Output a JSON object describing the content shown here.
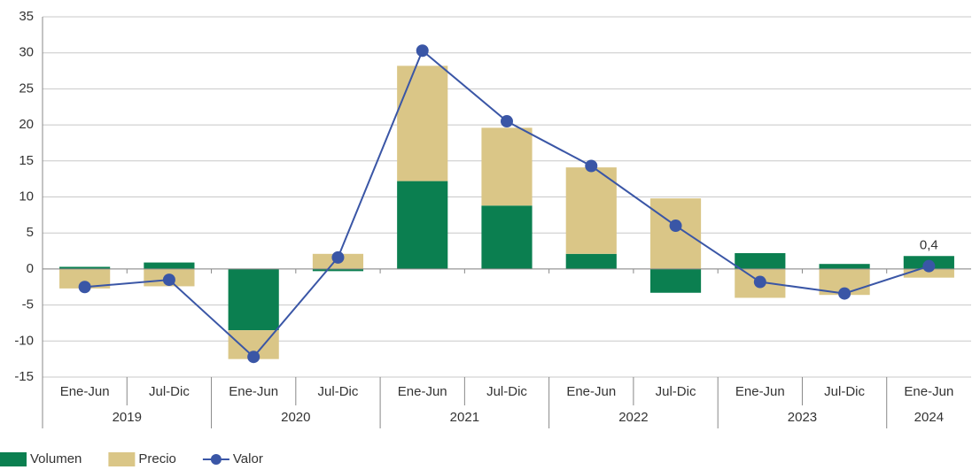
{
  "chart_data": {
    "type": "bar",
    "stacked": true,
    "categories": [
      "Ene-Jun",
      "Jul-Dic",
      "Ene-Jun",
      "Jul-Dic",
      "Ene-Jun",
      "Jul-Dic",
      "Ene-Jun",
      "Jul-Dic",
      "Ene-Jun",
      "Jul-Dic",
      "Ene-Jun"
    ],
    "x_groups": [
      {
        "name": "2019",
        "count": 2
      },
      {
        "name": "2020",
        "count": 2
      },
      {
        "name": "2021",
        "count": 2
      },
      {
        "name": "2022",
        "count": 2
      },
      {
        "name": "2023",
        "count": 2
      },
      {
        "name": "2024",
        "count": 1
      }
    ],
    "series": [
      {
        "name": "Volumen",
        "type": "bar",
        "color": "#0b7f50",
        "values": [
          0.3,
          0.9,
          -8.5,
          -0.3,
          12.2,
          8.8,
          2.1,
          -3.3,
          2.2,
          0.7,
          1.8
        ]
      },
      {
        "name": "Precio",
        "type": "bar",
        "color": "#dac687",
        "values": [
          -2.7,
          -2.4,
          -4.0,
          2.1,
          16.0,
          10.8,
          12.0,
          9.8,
          -4.0,
          -3.6,
          -1.2
        ]
      },
      {
        "name": "Valor",
        "type": "line",
        "color": "#3a56a6",
        "values": [
          -2.5,
          -1.5,
          -12.2,
          1.6,
          30.3,
          20.5,
          14.3,
          6.0,
          -1.8,
          -3.4,
          0.4
        ],
        "value_labels": [
          null,
          null,
          null,
          null,
          null,
          null,
          null,
          null,
          null,
          null,
          "0,4"
        ]
      }
    ],
    "ylim": [
      -15,
      35
    ],
    "yticks": [
      -15,
      -10,
      -5,
      0,
      5,
      10,
      15,
      20,
      25,
      30,
      35
    ],
    "grid": true,
    "legend": "bottom-left"
  }
}
